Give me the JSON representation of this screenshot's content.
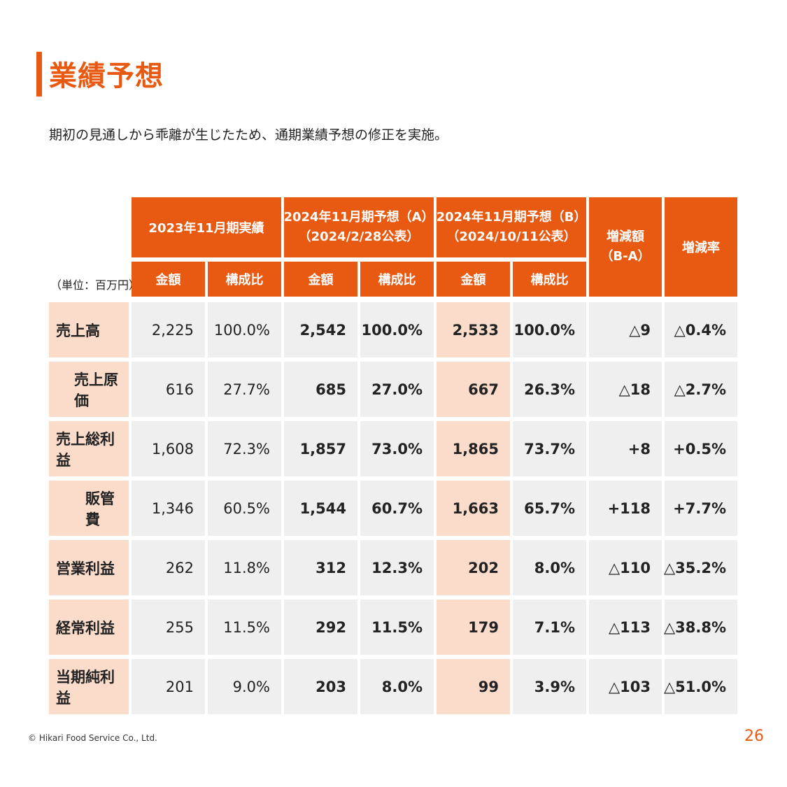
{
  "title": "業績予想",
  "subtitle": "期初の見通しから乖離が生じたため、通期業績予想の修正を実施。",
  "unit_label": "（単位：百万円）",
  "header": {
    "fy2023": "2023年11月期実績",
    "fy2024a_line1": "2024年11月期予想（A）",
    "fy2024a_line2": "（2024/2/28公表）",
    "fy2024b_line1": "2024年11月期予想（B）",
    "fy2024b_line2": "（2024/10/11公表）",
    "diff_line1": "増減額",
    "diff_line2": "（B-A）",
    "rate": "増減率",
    "amount": "金額",
    "ratio": "構成比"
  },
  "rows": [
    {
      "label": "売上高",
      "c1": "2,225",
      "c2": "100.0%",
      "c3": "2,542",
      "c4": "100.0%",
      "c5": "2,533",
      "c6": "100.0%",
      "c7": "△9",
      "c8": "△0.4%"
    },
    {
      "label": "売上原価",
      "c1": "616",
      "c2": "27.7%",
      "c3": "685",
      "c4": "27.0%",
      "c5": "667",
      "c6": "26.3%",
      "c7": "△18",
      "c8": "△2.7%"
    },
    {
      "label": "売上総利益",
      "c1": "1,608",
      "c2": "72.3%",
      "c3": "1,857",
      "c4": "73.0%",
      "c5": "1,865",
      "c6": "73.7%",
      "c7": "+8",
      "c8": "+0.5%"
    },
    {
      "label": "販管費",
      "c1": "1,346",
      "c2": "60.5%",
      "c3": "1,544",
      "c4": "60.7%",
      "c5": "1,663",
      "c6": "65.7%",
      "c7": "+118",
      "c8": "+7.7%"
    },
    {
      "label": "営業利益",
      "c1": "262",
      "c2": "11.8%",
      "c3": "312",
      "c4": "12.3%",
      "c5": "202",
      "c6": "8.0%",
      "c7": "△110",
      "c8": "△35.2%"
    },
    {
      "label": "経常利益",
      "c1": "255",
      "c2": "11.5%",
      "c3": "292",
      "c4": "11.5%",
      "c5": "179",
      "c6": "7.1%",
      "c7": "△113",
      "c8": "△38.8%"
    },
    {
      "label": "当期純利益",
      "c1": "201",
      "c2": "9.0%",
      "c3": "203",
      "c4": "8.0%",
      "c5": "99",
      "c6": "3.9%",
      "c7": "△103",
      "c8": "△51.0%"
    }
  ],
  "footer": "© Hikari Food Service Co., Ltd.",
  "page_number": "26",
  "colors": {
    "accent": "#e85a12",
    "label_bg": "#fbdccb",
    "cell_bg": "#efefef"
  }
}
